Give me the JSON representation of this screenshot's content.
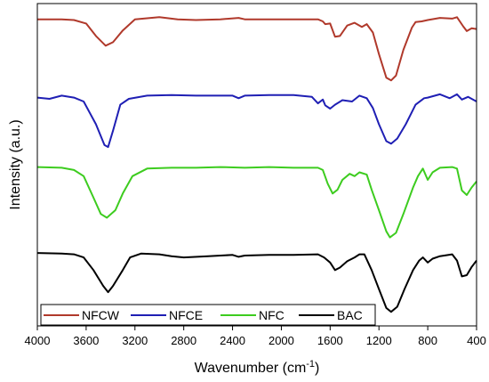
{
  "chart_data": {
    "type": "line",
    "xlabel": "Wavenumber (cm",
    "xlabel_sup": "-1",
    "xlabel_end": ")",
    "ylabel": "Intensity (a.u.)",
    "xlim": [
      4000,
      400
    ],
    "x_reversed": true,
    "yticks_shown": false,
    "grid": false,
    "legend_position": "bottom",
    "xticks": [
      "4000",
      "3600",
      "3200",
      "2800",
      "2400",
      "2000",
      "1600",
      "1200",
      "800",
      "400"
    ],
    "series": [
      {
        "name": "NFCW",
        "color": "#b0392b",
        "points": [
          [
            4000,
            0.06
          ],
          [
            3800,
            0.06
          ],
          [
            3700,
            0.07
          ],
          [
            3600,
            0.12
          ],
          [
            3520,
            0.3
          ],
          [
            3440,
            0.44
          ],
          [
            3380,
            0.39
          ],
          [
            3300,
            0.22
          ],
          [
            3200,
            0.06
          ],
          [
            3000,
            0.03
          ],
          [
            2850,
            0.06
          ],
          [
            2700,
            0.07
          ],
          [
            2500,
            0.06
          ],
          [
            2350,
            0.04
          ],
          [
            2300,
            0.06
          ],
          [
            2100,
            0.06
          ],
          [
            1900,
            0.06
          ],
          [
            1700,
            0.06
          ],
          [
            1660,
            0.09
          ],
          [
            1640,
            0.13
          ],
          [
            1600,
            0.12
          ],
          [
            1560,
            0.31
          ],
          [
            1520,
            0.3
          ],
          [
            1460,
            0.15
          ],
          [
            1400,
            0.11
          ],
          [
            1340,
            0.17
          ],
          [
            1300,
            0.13
          ],
          [
            1250,
            0.25
          ],
          [
            1200,
            0.56
          ],
          [
            1140,
            0.9
          ],
          [
            1100,
            0.94
          ],
          [
            1060,
            0.87
          ],
          [
            1000,
            0.5
          ],
          [
            930,
            0.18
          ],
          [
            900,
            0.1
          ],
          [
            850,
            0.09
          ],
          [
            800,
            0.07
          ],
          [
            700,
            0.04
          ],
          [
            600,
            0.05
          ],
          [
            560,
            0.03
          ],
          [
            510,
            0.16
          ],
          [
            480,
            0.23
          ],
          [
            440,
            0.19
          ],
          [
            400,
            0.2
          ]
        ]
      },
      {
        "name": "NFCE",
        "color": "#1f1fb4",
        "points": [
          [
            4000,
            0.09
          ],
          [
            3900,
            0.11
          ],
          [
            3800,
            0.06
          ],
          [
            3700,
            0.09
          ],
          [
            3620,
            0.15
          ],
          [
            3520,
            0.5
          ],
          [
            3450,
            0.82
          ],
          [
            3420,
            0.85
          ],
          [
            3380,
            0.6
          ],
          [
            3320,
            0.2
          ],
          [
            3250,
            0.11
          ],
          [
            3100,
            0.06
          ],
          [
            2900,
            0.05
          ],
          [
            2700,
            0.06
          ],
          [
            2400,
            0.06
          ],
          [
            2350,
            0.1
          ],
          [
            2300,
            0.06
          ],
          [
            2100,
            0.05
          ],
          [
            1900,
            0.05
          ],
          [
            1750,
            0.08
          ],
          [
            1700,
            0.18
          ],
          [
            1660,
            0.12
          ],
          [
            1640,
            0.21
          ],
          [
            1600,
            0.26
          ],
          [
            1560,
            0.2
          ],
          [
            1500,
            0.13
          ],
          [
            1420,
            0.15
          ],
          [
            1360,
            0.06
          ],
          [
            1300,
            0.1
          ],
          [
            1250,
            0.25
          ],
          [
            1200,
            0.5
          ],
          [
            1140,
            0.76
          ],
          [
            1100,
            0.8
          ],
          [
            1050,
            0.72
          ],
          [
            980,
            0.5
          ],
          [
            900,
            0.2
          ],
          [
            830,
            0.1
          ],
          [
            800,
            0.09
          ],
          [
            700,
            0.04
          ],
          [
            620,
            0.1
          ],
          [
            560,
            0.04
          ],
          [
            520,
            0.12
          ],
          [
            470,
            0.08
          ],
          [
            400,
            0.15
          ]
        ]
      },
      {
        "name": "NFC",
        "color": "#3dcc1f",
        "points": [
          [
            4000,
            0.03
          ],
          [
            3800,
            0.04
          ],
          [
            3700,
            0.07
          ],
          [
            3620,
            0.15
          ],
          [
            3550,
            0.4
          ],
          [
            3480,
            0.65
          ],
          [
            3430,
            0.7
          ],
          [
            3360,
            0.6
          ],
          [
            3300,
            0.38
          ],
          [
            3220,
            0.15
          ],
          [
            3100,
            0.05
          ],
          [
            2900,
            0.04
          ],
          [
            2700,
            0.04
          ],
          [
            2500,
            0.03
          ],
          [
            2300,
            0.04
          ],
          [
            2100,
            0.03
          ],
          [
            1900,
            0.04
          ],
          [
            1700,
            0.04
          ],
          [
            1660,
            0.07
          ],
          [
            1620,
            0.25
          ],
          [
            1580,
            0.38
          ],
          [
            1540,
            0.33
          ],
          [
            1500,
            0.2
          ],
          [
            1440,
            0.12
          ],
          [
            1400,
            0.15
          ],
          [
            1360,
            0.1
          ],
          [
            1300,
            0.13
          ],
          [
            1260,
            0.33
          ],
          [
            1200,
            0.6
          ],
          [
            1140,
            0.88
          ],
          [
            1110,
            0.96
          ],
          [
            1060,
            0.9
          ],
          [
            1000,
            0.65
          ],
          [
            920,
            0.3
          ],
          [
            880,
            0.15
          ],
          [
            840,
            0.05
          ],
          [
            800,
            0.2
          ],
          [
            760,
            0.1
          ],
          [
            700,
            0.04
          ],
          [
            600,
            0.03
          ],
          [
            560,
            0.05
          ],
          [
            520,
            0.34
          ],
          [
            480,
            0.4
          ],
          [
            440,
            0.3
          ],
          [
            400,
            0.22
          ]
        ]
      },
      {
        "name": "BAC",
        "color": "#000000",
        "points": [
          [
            4000,
            0.03
          ],
          [
            3800,
            0.04
          ],
          [
            3700,
            0.05
          ],
          [
            3620,
            0.1
          ],
          [
            3540,
            0.3
          ],
          [
            3460,
            0.55
          ],
          [
            3420,
            0.65
          ],
          [
            3380,
            0.55
          ],
          [
            3300,
            0.3
          ],
          [
            3240,
            0.1
          ],
          [
            3150,
            0.04
          ],
          [
            3000,
            0.05
          ],
          [
            2900,
            0.08
          ],
          [
            2800,
            0.1
          ],
          [
            2600,
            0.08
          ],
          [
            2400,
            0.06
          ],
          [
            2350,
            0.09
          ],
          [
            2300,
            0.07
          ],
          [
            2100,
            0.06
          ],
          [
            1900,
            0.06
          ],
          [
            1700,
            0.05
          ],
          [
            1650,
            0.1
          ],
          [
            1600,
            0.18
          ],
          [
            1560,
            0.3
          ],
          [
            1520,
            0.26
          ],
          [
            1460,
            0.16
          ],
          [
            1400,
            0.1
          ],
          [
            1360,
            0.05
          ],
          [
            1320,
            0.05
          ],
          [
            1260,
            0.3
          ],
          [
            1200,
            0.6
          ],
          [
            1140,
            0.9
          ],
          [
            1100,
            0.96
          ],
          [
            1050,
            0.88
          ],
          [
            990,
            0.6
          ],
          [
            920,
            0.3
          ],
          [
            870,
            0.15
          ],
          [
            840,
            0.1
          ],
          [
            800,
            0.18
          ],
          [
            760,
            0.12
          ],
          [
            700,
            0.08
          ],
          [
            600,
            0.05
          ],
          [
            560,
            0.15
          ],
          [
            520,
            0.4
          ],
          [
            480,
            0.38
          ],
          [
            440,
            0.25
          ],
          [
            400,
            0.15
          ]
        ]
      }
    ]
  }
}
